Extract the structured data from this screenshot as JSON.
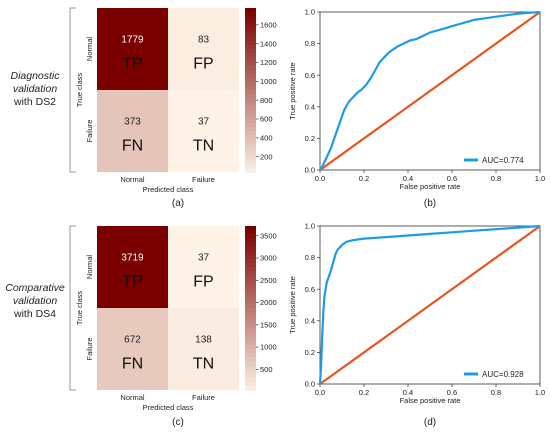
{
  "figure": {
    "row_labels": [
      {
        "line1": "Diagnostic",
        "line2": "validation",
        "line3": "with DS2"
      },
      {
        "line1": "Comparative",
        "line2": "validation",
        "line3": "with DS4"
      }
    ]
  },
  "colors": {
    "roc": "#1e9be8",
    "diagonal": "#e8541e",
    "dark": "#7a0000",
    "light": "#fef3e6"
  },
  "chart_data": [
    {
      "type": "heatmap",
      "panel": "(a)",
      "xlabel": "Predicted class",
      "ylabel": "True class",
      "x_categories": [
        "Normal",
        "Failure"
      ],
      "y_categories": [
        "Normal",
        "Failure"
      ],
      "values": [
        [
          1779,
          83
        ],
        [
          373,
          37
        ]
      ],
      "cell_tags": [
        [
          "TP",
          "FP"
        ],
        [
          "FN",
          "TN"
        ]
      ],
      "colorbar": {
        "min": 37,
        "max": 1779,
        "ticks": [
          200,
          400,
          600,
          800,
          1000,
          1200,
          1400,
          1600
        ]
      }
    },
    {
      "type": "line",
      "panel": "(b)",
      "xlabel": "False positive rate",
      "ylabel": "True positive rate",
      "xlim": [
        0,
        1
      ],
      "ylim": [
        0,
        1
      ],
      "xticks": [
        0.0,
        0.2,
        0.4,
        0.6,
        0.8,
        1.0
      ],
      "yticks": [
        0.0,
        0.2,
        0.4,
        0.6,
        0.8,
        1.0
      ],
      "legend_position": "bottom-right",
      "series": [
        {
          "name": "AUC=0.774",
          "x": [
            0,
            0.01,
            0.02,
            0.03,
            0.05,
            0.07,
            0.09,
            0.11,
            0.13,
            0.15,
            0.17,
            0.19,
            0.21,
            0.23,
            0.25,
            0.27,
            0.29,
            0.31,
            0.33,
            0.35,
            0.38,
            0.41,
            0.44,
            0.47,
            0.5,
            0.55,
            0.6,
            0.65,
            0.7,
            0.75,
            0.8,
            0.85,
            0.9,
            0.95,
            1.0
          ],
          "y": [
            0,
            0.02,
            0.05,
            0.08,
            0.14,
            0.22,
            0.3,
            0.38,
            0.43,
            0.46,
            0.49,
            0.51,
            0.54,
            0.58,
            0.63,
            0.68,
            0.71,
            0.74,
            0.76,
            0.78,
            0.8,
            0.82,
            0.83,
            0.85,
            0.87,
            0.89,
            0.91,
            0.93,
            0.95,
            0.96,
            0.97,
            0.98,
            0.99,
            0.995,
            1.0
          ]
        }
      ],
      "reference_line": {
        "x": [
          0,
          1
        ],
        "y": [
          0,
          1
        ]
      }
    },
    {
      "type": "heatmap",
      "panel": "(c)",
      "xlabel": "Predicted class",
      "ylabel": "True class",
      "x_categories": [
        "Normal",
        "Failure"
      ],
      "y_categories": [
        "Normal",
        "Failure"
      ],
      "values": [
        [
          3719,
          37
        ],
        [
          672,
          138
        ]
      ],
      "cell_tags": [
        [
          "TP",
          "FP"
        ],
        [
          "FN",
          "TN"
        ]
      ],
      "colorbar": {
        "min": 37,
        "max": 3719,
        "ticks": [
          500,
          1000,
          1500,
          2000,
          2500,
          3000,
          3500
        ]
      }
    },
    {
      "type": "line",
      "panel": "(d)",
      "xlabel": "False positive rate",
      "ylabel": "True positive rate",
      "xlim": [
        0,
        1
      ],
      "ylim": [
        0,
        1
      ],
      "xticks": [
        0.0,
        0.2,
        0.4,
        0.6,
        0.8,
        1.0
      ],
      "yticks": [
        0.0,
        0.2,
        0.4,
        0.6,
        0.8,
        1.0
      ],
      "legend_position": "bottom-right",
      "series": [
        {
          "name": "AUC=0.928",
          "x": [
            0,
            0.005,
            0.01,
            0.015,
            0.02,
            0.03,
            0.04,
            0.05,
            0.06,
            0.07,
            0.08,
            0.1,
            0.12,
            0.15,
            0.2,
            0.3,
            0.4,
            0.5,
            0.6,
            0.7,
            0.8,
            0.9,
            1.0
          ],
          "y": [
            0,
            0.12,
            0.3,
            0.45,
            0.55,
            0.64,
            0.68,
            0.72,
            0.77,
            0.82,
            0.85,
            0.88,
            0.9,
            0.91,
            0.92,
            0.93,
            0.94,
            0.95,
            0.96,
            0.97,
            0.98,
            0.99,
            1.0
          ]
        }
      ],
      "reference_line": {
        "x": [
          0,
          1
        ],
        "y": [
          0,
          1
        ]
      }
    }
  ]
}
